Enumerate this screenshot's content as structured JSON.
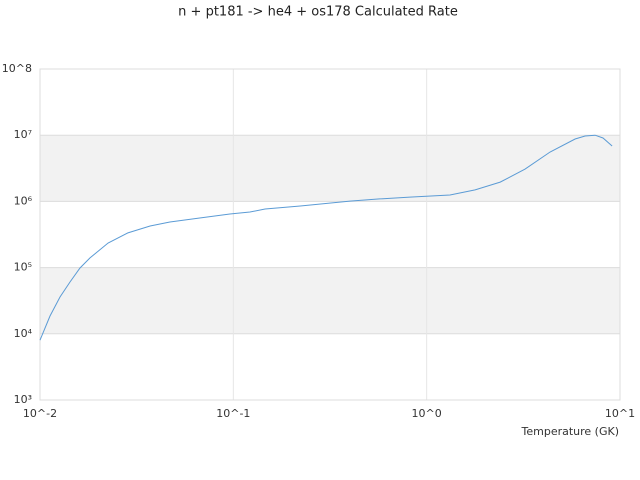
{
  "chart_data": {
    "type": "line",
    "title": "n + pt181 -> he4 + os178 Calculated Rate",
    "x_label": "Temperature (GK)",
    "x_scale": "log",
    "y_scale": "log",
    "xlim": [
      0.01,
      10
    ],
    "ylim": [
      1000,
      100000000
    ],
    "xticks": [
      {
        "value": 0.01,
        "label": "10^-2"
      },
      {
        "value": 0.1,
        "label": "10^-1"
      },
      {
        "value": 1,
        "label": "10^0"
      },
      {
        "value": 10,
        "label": "10^1"
      }
    ],
    "yticks": [
      {
        "value": 1000,
        "label": "10³"
      },
      {
        "value": 10000,
        "label": "10⁴"
      },
      {
        "value": 100000,
        "label": "10⁵"
      },
      {
        "value": 1000000,
        "label": "10⁶"
      },
      {
        "value": 10000000,
        "label": "10⁷"
      },
      {
        "value": 100000000,
        "label": "10^8"
      }
    ],
    "color": "#5b9bd5",
    "band_color": "#f2f2f2",
    "x": [
      0.01,
      0.01126,
      0.01269,
      0.01429,
      0.0161,
      0.01813,
      0.0225,
      0.0285,
      0.0371,
      0.047,
      0.067,
      0.096,
      0.122,
      0.146,
      0.222,
      0.401,
      0.571,
      0.818,
      1.32,
      1.78,
      2.4,
      3.23,
      4.35,
      5.86,
      6.6,
      7.43,
      8.17,
      9.1
    ],
    "values": [
      8000,
      18600,
      36000,
      60500,
      98600,
      140000,
      235000,
      334000,
      425000,
      489000,
      562000,
      646000,
      692000,
      767000,
      853000,
      1010000,
      1090000,
      1160000,
      1250000,
      1490000,
      1960000,
      3080000,
      5570000,
      8770000,
      9730000,
      10000000,
      9070000,
      6870000
    ]
  }
}
